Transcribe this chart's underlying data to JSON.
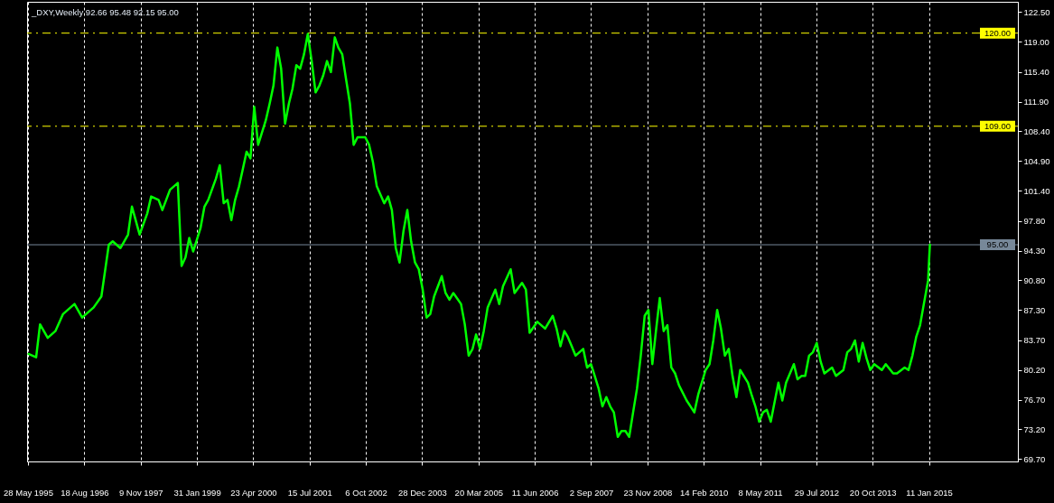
{
  "chart_data": {
    "type": "line",
    "title": "_DXY,Weekly  92.66 95.48 92.15 95.00",
    "color": "#00ff00",
    "x": [
      "1995-06",
      "1995-08",
      "1995-09",
      "1995-11",
      "1996-01",
      "1996-03",
      "1996-06",
      "1996-08",
      "1996-11",
      "1997-01",
      "1997-02",
      "1997-03",
      "1997-04",
      "1997-06",
      "1997-08",
      "1997-09",
      "1997-10",
      "1997-11",
      "1998-01",
      "1998-02",
      "1998-04",
      "1998-05",
      "1998-07",
      "1998-09",
      "1998-10",
      "1998-11",
      "1998-12",
      "1999-01",
      "1999-03",
      "1999-04",
      "1999-05",
      "1999-07",
      "1999-08",
      "1999-09",
      "1999-10",
      "1999-11",
      "1999-12",
      "2000-01",
      "2000-02",
      "2000-03",
      "2000-04",
      "2000-05",
      "2000-06",
      "2000-08",
      "2000-09",
      "2000-10",
      "2000-11",
      "2000-12",
      "2001-01",
      "2001-02",
      "2001-03",
      "2001-04",
      "2001-05",
      "2001-06",
      "2001-07",
      "2001-08",
      "2001-09",
      "2001-10",
      "2001-11",
      "2001-12",
      "2002-01",
      "2002-02",
      "2002-03",
      "2002-04",
      "2002-05",
      "2002-06",
      "2002-07",
      "2002-08",
      "2002-10",
      "2002-11",
      "2002-12",
      "2003-01",
      "2003-03",
      "2003-04",
      "2003-05",
      "2003-06",
      "2003-07",
      "2003-08",
      "2003-09",
      "2003-10",
      "2003-11",
      "2003-12",
      "2004-01",
      "2004-02",
      "2004-03",
      "2004-04",
      "2004-06",
      "2004-07",
      "2004-08",
      "2004-09",
      "2004-11",
      "2004-12",
      "2005-01",
      "2005-02",
      "2005-03",
      "2005-04",
      "2005-05",
      "2005-06",
      "2005-08",
      "2005-09",
      "2005-10",
      "2005-12",
      "2006-01",
      "2006-03",
      "2006-04",
      "2006-05",
      "2006-07",
      "2006-08",
      "2006-09",
      "2006-11",
      "2006-12",
      "2007-01",
      "2007-02",
      "2007-03",
      "2007-04",
      "2007-05",
      "2007-07",
      "2007-08",
      "2007-09",
      "2007-10",
      "2007-11",
      "2007-12",
      "2008-01",
      "2008-02",
      "2008-03",
      "2008-04",
      "2008-05",
      "2008-06",
      "2008-07",
      "2008-08",
      "2008-09",
      "2008-10",
      "2008-11",
      "2008-12",
      "2009-01",
      "2009-02",
      "2009-03",
      "2009-04",
      "2009-05",
      "2009-06",
      "2009-07",
      "2009-08",
      "2009-10",
      "2009-11",
      "2009-12",
      "2010-01",
      "2010-03",
      "2010-04",
      "2010-05",
      "2010-06",
      "2010-07",
      "2010-08",
      "2010-09",
      "2010-10",
      "2010-11",
      "2010-12",
      "2011-02",
      "2011-03",
      "2011-04",
      "2011-05",
      "2011-06",
      "2011-07",
      "2011-08",
      "2011-10",
      "2011-11",
      "2011-12",
      "2012-02",
      "2012-03",
      "2012-04",
      "2012-05",
      "2012-06",
      "2012-07",
      "2012-08",
      "2012-09",
      "2012-10",
      "2012-12",
      "2013-01",
      "2013-03",
      "2013-04",
      "2013-05",
      "2013-06",
      "2013-07",
      "2013-08",
      "2013-09",
      "2013-10",
      "2013-11",
      "2014-01",
      "2014-02",
      "2014-04",
      "2014-05",
      "2014-07",
      "2014-08",
      "2014-09",
      "2014-10",
      "2014-11",
      "2014-12",
      "2015-01-04",
      "2015-01-11",
      "2015-01-18"
    ],
    "values": [
      82.1,
      81.7,
      85.6,
      84.0,
      84.8,
      86.8,
      88.0,
      86.4,
      87.6,
      88.9,
      92.1,
      95.0,
      95.4,
      94.6,
      96.2,
      99.5,
      97.9,
      96.2,
      98.7,
      100.7,
      100.3,
      99.1,
      101.5,
      102.3,
      92.5,
      93.5,
      95.8,
      94.2,
      97.0,
      99.5,
      100.3,
      102.8,
      104.4,
      99.9,
      100.3,
      97.9,
      100.3,
      101.9,
      104.0,
      106.0,
      105.2,
      111.3,
      106.8,
      109.7,
      111.7,
      113.8,
      118.3,
      115.8,
      109.3,
      111.7,
      113.4,
      116.2,
      115.8,
      117.5,
      119.9,
      116.7,
      113.0,
      113.8,
      115.0,
      116.7,
      115.4,
      119.5,
      118.3,
      117.5,
      114.6,
      111.7,
      106.8,
      107.7,
      107.7,
      106.8,
      104.8,
      101.9,
      99.9,
      100.7,
      99.1,
      94.6,
      92.9,
      96.6,
      99.1,
      95.4,
      92.9,
      92.1,
      89.7,
      86.4,
      86.8,
      88.9,
      91.3,
      89.3,
      88.5,
      89.3,
      88.0,
      85.6,
      81.9,
      82.7,
      84.4,
      82.7,
      84.8,
      87.6,
      89.7,
      88.0,
      90.1,
      92.1,
      89.3,
      90.5,
      89.7,
      84.6,
      85.9,
      85.5,
      85.1,
      86.6,
      85.1,
      83.0,
      84.8,
      84.1,
      83.0,
      81.9,
      82.7,
      80.5,
      80.9,
      79.5,
      78.0,
      75.9,
      77.0,
      75.9,
      75.2,
      72.3,
      73.0,
      73.0,
      72.3,
      75.2,
      78.0,
      81.9,
      86.6,
      87.3,
      80.9,
      85.1,
      88.7,
      84.8,
      85.5,
      80.5,
      79.8,
      78.4,
      76.6,
      75.9,
      75.2,
      77.3,
      80.2,
      80.9,
      83.7,
      87.3,
      85.1,
      81.9,
      82.7,
      79.5,
      77.0,
      80.2,
      78.7,
      77.3,
      75.9,
      74.1,
      75.2,
      75.5,
      74.1,
      78.7,
      76.6,
      78.7,
      80.9,
      79.1,
      79.5,
      79.5,
      81.9,
      82.3,
      83.4,
      81.2,
      79.8,
      80.5,
      79.5,
      80.2,
      82.3,
      82.7,
      83.7,
      81.2,
      83.4,
      81.6,
      80.2,
      80.9,
      80.2,
      80.9,
      79.8,
      79.8,
      80.5,
      80.2,
      81.9,
      84.1,
      85.5,
      88.0,
      90.8,
      93.0,
      95.0
    ],
    "xlim": [
      "1995-05-21",
      "2016-12-18"
    ],
    "xticks": [
      {
        "value": "1995-05-28",
        "label": "28 May 1995"
      },
      {
        "value": "1996-08-18",
        "label": "18 Aug 1996"
      },
      {
        "value": "1997-11-09",
        "label": "9 Nov 1997"
      },
      {
        "value": "1999-01-31",
        "label": "31 Jan 1999"
      },
      {
        "value": "2000-04-23",
        "label": "23 Apr 2000"
      },
      {
        "value": "2001-07-15",
        "label": "15 Jul 2001"
      },
      {
        "value": "2002-10-06",
        "label": "6 Oct 2002"
      },
      {
        "value": "2003-12-28",
        "label": "28 Dec 2003"
      },
      {
        "value": "2005-03-20",
        "label": "20 Mar 2005"
      },
      {
        "value": "2006-06-11",
        "label": "11 Jun 2006"
      },
      {
        "value": "2007-09-02",
        "label": "2 Sep 2007"
      },
      {
        "value": "2008-11-23",
        "label": "23 Nov 2008"
      },
      {
        "value": "2010-02-14",
        "label": "14 Feb 2010"
      },
      {
        "value": "2011-05-08",
        "label": "8 May 2011"
      },
      {
        "value": "2012-07-29",
        "label": "29 Jul 2012"
      },
      {
        "value": "2013-10-20",
        "label": "20 Oct 2013"
      },
      {
        "value": "2015-01-11",
        "label": "11 Jan 2015"
      }
    ],
    "ylim": [
      69.4,
      123.7
    ],
    "yticks": [
      {
        "value": 69.7,
        "label": "69.70"
      },
      {
        "value": 73.2,
        "label": "73.20"
      },
      {
        "value": 76.7,
        "label": "76.70"
      },
      {
        "value": 80.2,
        "label": "80.20"
      },
      {
        "value": 83.7,
        "label": "83.70"
      },
      {
        "value": 87.3,
        "label": "87.30"
      },
      {
        "value": 90.8,
        "label": "90.80"
      },
      {
        "value": 94.3,
        "label": "94.30"
      },
      {
        "value": 97.8,
        "label": "97.80"
      },
      {
        "value": 101.4,
        "label": "101.40"
      },
      {
        "value": 104.9,
        "label": "104.90"
      },
      {
        "value": 108.4,
        "label": "108.40"
      },
      {
        "value": 111.9,
        "label": "111.90"
      },
      {
        "value": 115.4,
        "label": "115.40"
      },
      {
        "value": 119,
        "label": "119.00"
      },
      {
        "value": 122.5,
        "label": "122.50"
      }
    ],
    "ref_lines": [
      {
        "axis": "y",
        "value": 120,
        "label": "120.00",
        "color": "#ffff00",
        "line_style": "dashed"
      },
      {
        "axis": "y",
        "value": 109,
        "label": "109.00",
        "color": "#ffff00",
        "line_style": "dashed"
      },
      {
        "axis": "y",
        "value": 95,
        "label": "95.00",
        "color": "#778899",
        "line_style": "solid"
      }
    ],
    "grid": "x"
  }
}
